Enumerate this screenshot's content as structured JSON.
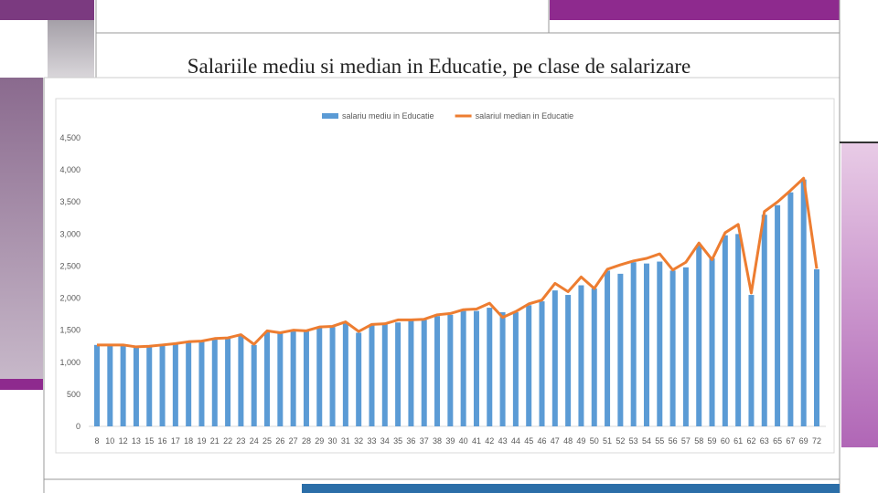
{
  "chart_data": {
    "type": "bar_line",
    "title": "Salariile mediu si median in Educatie, pe clase de salarizare",
    "categories": [
      "8",
      "10",
      "12",
      "13",
      "15",
      "16",
      "17",
      "18",
      "19",
      "21",
      "22",
      "23",
      "24",
      "25",
      "26",
      "27",
      "28",
      "29",
      "30",
      "31",
      "32",
      "33",
      "34",
      "35",
      "36",
      "37",
      "38",
      "39",
      "40",
      "41",
      "42",
      "43",
      "44",
      "45",
      "46",
      "47",
      "48",
      "49",
      "50",
      "51",
      "52",
      "53",
      "54",
      "55",
      "56",
      "57",
      "58",
      "59",
      "60",
      "61",
      "62",
      "63",
      "65",
      "67",
      "69",
      "72"
    ],
    "series": [
      {
        "name": "salariu mediu in Educatie",
        "color": "#5b9bd5",
        "type": "bar",
        "values": [
          1270,
          1270,
          1270,
          1240,
          1250,
          1270,
          1290,
          1320,
          1330,
          1370,
          1370,
          1420,
          1270,
          1480,
          1450,
          1490,
          1490,
          1540,
          1550,
          1610,
          1460,
          1580,
          1590,
          1620,
          1650,
          1660,
          1720,
          1740,
          1800,
          1800,
          1850,
          1780,
          1780,
          1890,
          1950,
          2120,
          2050,
          2200,
          2150,
          2430,
          2380,
          2560,
          2540,
          2570,
          2430,
          2480,
          2830,
          2620,
          2980,
          3000,
          2050,
          3300,
          3450,
          3650,
          3850,
          2450
        ]
      },
      {
        "name": "salariul median in Educatie",
        "color": "#ed7d31",
        "type": "line",
        "values": [
          1270,
          1270,
          1270,
          1240,
          1250,
          1270,
          1290,
          1320,
          1330,
          1370,
          1380,
          1430,
          1280,
          1490,
          1460,
          1500,
          1490,
          1550,
          1560,
          1630,
          1480,
          1590,
          1600,
          1660,
          1660,
          1670,
          1740,
          1760,
          1820,
          1830,
          1920,
          1700,
          1790,
          1910,
          1970,
          2230,
          2100,
          2330,
          2150,
          2450,
          2520,
          2580,
          2620,
          2690,
          2440,
          2560,
          2860,
          2600,
          3020,
          3150,
          2080,
          3350,
          3500,
          3680,
          3870,
          2460
        ]
      }
    ],
    "ylim": [
      0,
      4500
    ],
    "yticks": [
      0,
      500,
      {
        "value": 1000,
        "label": "1,000"
      },
      {
        "value": 1500,
        "label": "1,500"
      },
      {
        "value": 2000,
        "label": "2,000"
      },
      {
        "value": 2500,
        "label": "2,500"
      },
      {
        "value": 3000,
        "label": "3,000"
      },
      {
        "value": 3500,
        "label": "3,500"
      },
      {
        "value": 4000,
        "label": "4,000"
      },
      {
        "value": 4500,
        "label": "4,500"
      }
    ],
    "grid": false,
    "legend": "top"
  }
}
